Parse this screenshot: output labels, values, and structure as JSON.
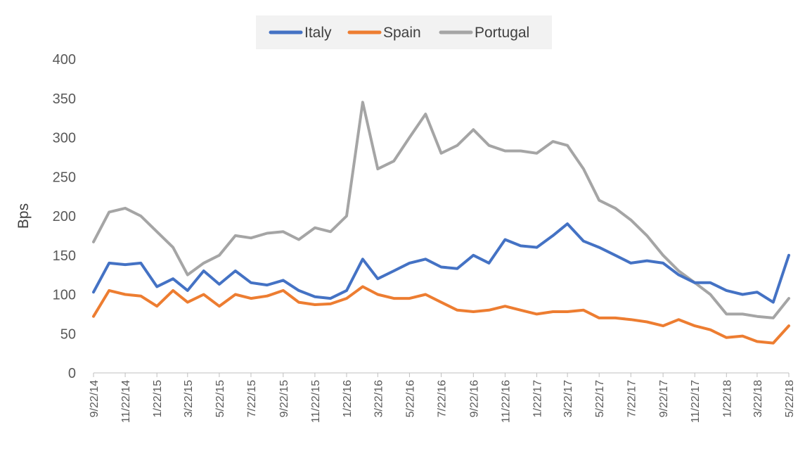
{
  "chart_data": {
    "type": "line",
    "xlabel": "",
    "ylabel": "Bps",
    "ylim": [
      0,
      400
    ],
    "yticks": [
      0,
      50,
      100,
      150,
      200,
      250,
      300,
      350,
      400
    ],
    "xlim": [
      "9/22/14",
      "5/22/18"
    ],
    "xtick_labels": [
      "9/22/14",
      "11/22/14",
      "1/22/15",
      "3/22/15",
      "5/22/15",
      "7/22/15",
      "9/22/15",
      "11/22/15",
      "1/22/16",
      "3/22/16",
      "5/22/16",
      "7/22/16",
      "9/22/16",
      "11/22/16",
      "1/22/17",
      "3/22/17",
      "5/22/17",
      "7/22/17",
      "9/22/17",
      "11/22/17",
      "1/22/18",
      "3/22/18",
      "5/22/18"
    ],
    "grid": false,
    "legend_position": "top-center",
    "x": [
      "9/22/14",
      "10/22/14",
      "11/22/14",
      "12/22/14",
      "1/22/15",
      "2/22/15",
      "3/22/15",
      "4/22/15",
      "5/22/15",
      "6/22/15",
      "7/22/15",
      "8/22/15",
      "9/22/15",
      "10/22/15",
      "11/22/15",
      "12/22/15",
      "1/22/16",
      "2/22/16",
      "3/22/16",
      "4/22/16",
      "5/22/16",
      "6/22/16",
      "7/22/16",
      "8/22/16",
      "9/22/16",
      "10/22/16",
      "11/22/16",
      "12/22/16",
      "1/22/17",
      "2/22/17",
      "3/22/17",
      "4/22/17",
      "5/22/17",
      "6/22/17",
      "7/22/17",
      "8/22/17",
      "9/22/17",
      "10/22/17",
      "11/22/17",
      "12/22/17",
      "1/22/18",
      "2/22/18",
      "3/22/18",
      "4/22/18",
      "5/22/18"
    ],
    "series": [
      {
        "name": "Italy",
        "color": "#4472C4",
        "values": [
          103,
          140,
          138,
          140,
          110,
          120,
          105,
          130,
          113,
          130,
          115,
          112,
          118,
          105,
          97,
          95,
          105,
          145,
          120,
          130,
          140,
          145,
          135,
          133,
          150,
          140,
          170,
          162,
          160,
          175,
          190,
          168,
          160,
          150,
          140,
          143,
          140,
          125,
          115,
          115,
          105,
          100,
          103,
          90,
          150
        ]
      },
      {
        "name": "Spain",
        "color": "#ED7D31",
        "values": [
          72,
          105,
          100,
          98,
          85,
          105,
          90,
          100,
          85,
          100,
          95,
          98,
          105,
          90,
          87,
          88,
          95,
          110,
          100,
          95,
          95,
          100,
          90,
          80,
          78,
          80,
          85,
          80,
          75,
          78,
          78,
          80,
          70,
          70,
          68,
          65,
          60,
          68,
          60,
          55,
          45,
          47,
          40,
          38,
          60
        ]
      },
      {
        "name": "Portugal",
        "color": "#A5A5A5",
        "values": [
          167,
          205,
          210,
          200,
          180,
          160,
          125,
          140,
          150,
          175,
          172,
          178,
          180,
          170,
          185,
          180,
          200,
          345,
          260,
          270,
          300,
          330,
          280,
          290,
          310,
          290,
          283,
          283,
          280,
          295,
          290,
          260,
          220,
          210,
          195,
          175,
          150,
          130,
          115,
          100,
          75,
          75,
          72,
          70,
          95
        ]
      }
    ]
  }
}
